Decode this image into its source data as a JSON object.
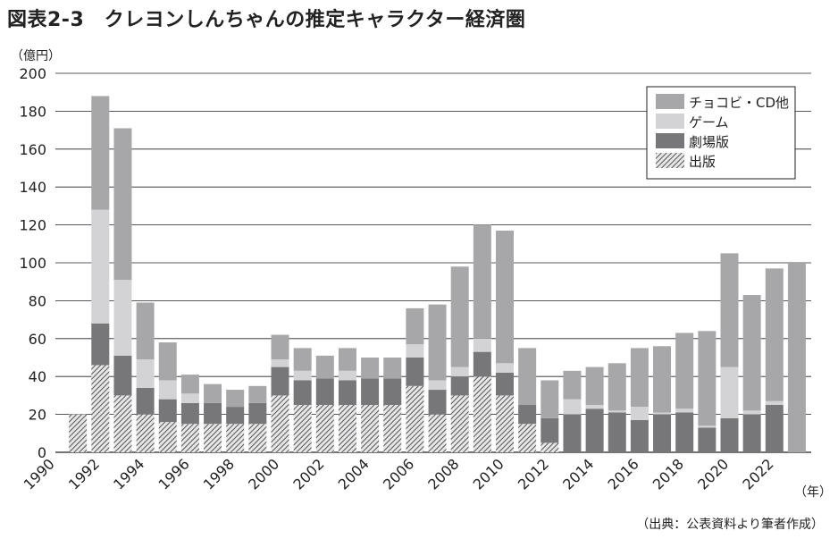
{
  "title": "図表2-3　クレヨンしんちゃんの推定キャラクター経済圏",
  "y_unit": "（億円）",
  "x_unit": "（年）",
  "source": "（出典：公表資料より筆者作成）",
  "colors": {
    "other": "#a7a7a9",
    "game": "#d3d3d5",
    "movie": "#77777a",
    "publishing_stripe": "#55555a",
    "publishing_bg": "#e6e6e6",
    "grid": "#222222"
  },
  "chart_data": {
    "type": "bar",
    "stacked": true,
    "xlabel": "",
    "ylabel": "",
    "ylim": [
      0,
      200
    ],
    "yticks": [
      0,
      20,
      40,
      60,
      80,
      100,
      120,
      140,
      160,
      180,
      200
    ],
    "xticks": [
      "1990",
      "1992",
      "1994",
      "1996",
      "1998",
      "2000",
      "2002",
      "2004",
      "2006",
      "2008",
      "2010",
      "2012",
      "2014",
      "2016",
      "2018",
      "2020",
      "2022"
    ],
    "grid": "horizontal",
    "legend_position": "top-right",
    "categories": [
      "1991",
      "1992",
      "1993",
      "1994",
      "1995",
      "1996",
      "1997",
      "1998",
      "1999",
      "2000",
      "2001",
      "2002",
      "2003",
      "2004",
      "2005",
      "2006",
      "2007",
      "2008",
      "2009",
      "2010",
      "2011",
      "2012",
      "2013",
      "2014",
      "2015",
      "2016",
      "2017",
      "2018",
      "2019",
      "2020",
      "2021",
      "2022",
      "2023"
    ],
    "series": [
      {
        "name": "出版",
        "key": "publishing",
        "values": [
          20,
          46,
          30,
          20,
          16,
          15,
          15,
          15,
          15,
          30,
          25,
          25,
          25,
          25,
          25,
          35,
          20,
          30,
          40,
          30,
          15,
          5,
          0,
          0,
          0,
          0,
          0,
          0,
          0,
          0,
          0,
          0,
          0
        ]
      },
      {
        "name": "劇場版",
        "key": "movie",
        "values": [
          0,
          22,
          21,
          14,
          12,
          11,
          11,
          9,
          11,
          15,
          13,
          14,
          13,
          14,
          14,
          15,
          13,
          10,
          13,
          12,
          10,
          13,
          20,
          23,
          21,
          17,
          20,
          21,
          13,
          18,
          20,
          25,
          0
        ]
      },
      {
        "name": "ゲーム",
        "key": "game",
        "values": [
          0,
          60,
          40,
          15,
          10,
          5,
          0,
          0,
          0,
          4,
          5,
          0,
          5,
          0,
          0,
          7,
          5,
          5,
          7,
          5,
          0,
          0,
          8,
          2,
          1,
          7,
          1,
          2,
          1,
          27,
          2,
          2,
          0
        ]
      },
      {
        "name": "チョコビ・CD他",
        "key": "other",
        "values": [
          0,
          60,
          80,
          30,
          20,
          10,
          10,
          9,
          9,
          13,
          12,
          12,
          12,
          11,
          11,
          19,
          40,
          53,
          60,
          70,
          30,
          20,
          15,
          20,
          25,
          31,
          35,
          40,
          50,
          60,
          61,
          70,
          100
        ]
      }
    ]
  }
}
